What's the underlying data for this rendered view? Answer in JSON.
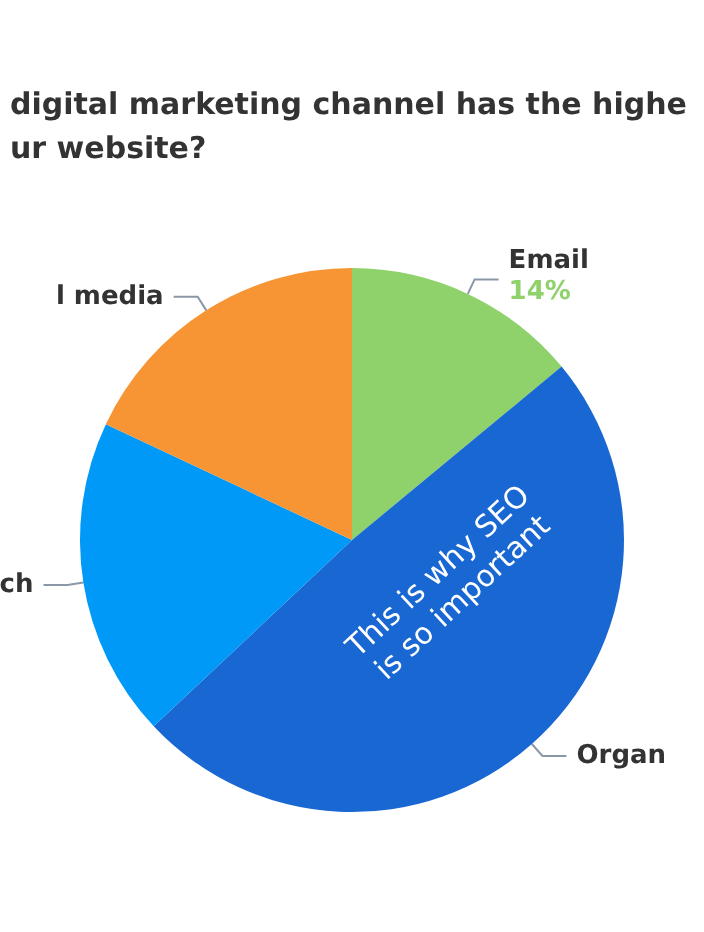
{
  "chart_data": {
    "type": "pie",
    "title": "digital marketing channel has the highe\nur website?",
    "categories": [
      "Email",
      "Organ",
      "ch",
      "l media"
    ],
    "values": [
      14,
      49,
      19,
      18
    ],
    "colors": [
      "#8fd16a",
      "#1967d2",
      "#0099f7",
      "#f79433"
    ],
    "value_labels": [
      "14%",
      null,
      null,
      null
    ],
    "annotations": [
      "This is why SEO\nis so important"
    ]
  }
}
